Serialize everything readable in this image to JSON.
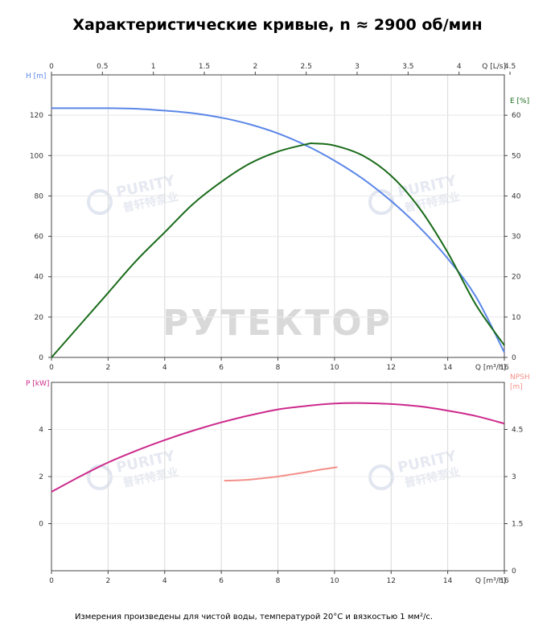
{
  "title": "Характеристические кривые, n ≈ 2900 об/мин",
  "footnote": "Измерения произведены для чистой воды, температурой 20°С и вязкостью 1 мм²/с.",
  "watermarks": {
    "brand": "PURITY",
    "brand_cn": "普轩特泵业",
    "main": "РУТЕКТОР"
  },
  "colors": {
    "head": "#5b87e8",
    "efficiency": "#1a6b1a",
    "power": "#cc2a8c",
    "npsh": "#f4908a",
    "axis_text": "#333333",
    "grid": "#d8d8d8"
  },
  "chart_data": [
    {
      "type": "line",
      "name": "top",
      "x_top": {
        "label": "Q [L/s]",
        "ticks": [
          "0",
          "0.5",
          "1",
          "1.5",
          "2",
          "2.5",
          "3",
          "3.5",
          "4",
          "4.5"
        ],
        "range": [
          0,
          4.5
        ]
      },
      "x": {
        "label": "Q [m³/h]",
        "ticks": [
          "0",
          "2",
          "4",
          "6",
          "8",
          "10",
          "12",
          "14",
          "16"
        ],
        "range": [
          0,
          16
        ]
      },
      "y_left": {
        "label": "H [m]",
        "ticks": [
          "0",
          "20",
          "40",
          "60",
          "80",
          "100",
          "120"
        ],
        "range": [
          0,
          140
        ]
      },
      "y_right": {
        "label": "E [%]",
        "ticks": [
          "0",
          "10",
          "20",
          "30",
          "40",
          "50",
          "60"
        ],
        "range": [
          0,
          70
        ]
      },
      "series": [
        {
          "axis": "left",
          "color_key": "head",
          "x": [
            0,
            1,
            2,
            3,
            4,
            5,
            6,
            7,
            8,
            9,
            10,
            11,
            12,
            13,
            14,
            15,
            16
          ],
          "y": [
            123.5,
            123.5,
            123.5,
            123.2,
            122.3,
            121,
            118.8,
            115.5,
            111,
            105,
            97.5,
            88.5,
            77.5,
            64.5,
            49,
            30,
            2.5
          ]
        },
        {
          "axis": "right",
          "color_key": "efficiency",
          "x": [
            0,
            1,
            2,
            3,
            4,
            5,
            6,
            7,
            8,
            9,
            9.3,
            10,
            11,
            12,
            13,
            14,
            15,
            16
          ],
          "y": [
            0,
            8,
            16,
            24,
            31,
            38,
            43.5,
            48,
            51,
            52.8,
            53,
            52.5,
            50,
            45,
            37,
            26,
            13,
            3
          ]
        }
      ]
    },
    {
      "type": "line",
      "name": "bottom",
      "x": {
        "label": "Q [m³/h]",
        "ticks": [
          "0",
          "2",
          "4",
          "6",
          "8",
          "10",
          "12",
          "14",
          "16"
        ],
        "range": [
          0,
          16
        ]
      },
      "y_left": {
        "label": "P [kW]",
        "ticks": [
          "0",
          "2",
          "4"
        ],
        "range": [
          -2,
          6
        ]
      },
      "y_right": {
        "label": "NPSH [m]",
        "ticks": [
          "0",
          "1.5",
          "3",
          "4.5"
        ],
        "range": [
          0,
          6
        ]
      },
      "series": [
        {
          "axis": "left",
          "color_key": "power",
          "x": [
            0,
            1,
            2,
            3,
            4,
            5,
            6,
            7,
            8,
            9,
            10,
            11,
            12,
            13,
            14,
            15,
            16
          ],
          "y": [
            1.35,
            2,
            2.6,
            3.1,
            3.55,
            3.95,
            4.3,
            4.6,
            4.85,
            5.0,
            5.1,
            5.12,
            5.08,
            4.98,
            4.8,
            4.57,
            4.25
          ]
        },
        {
          "axis": "right",
          "color_key": "npsh",
          "x": [
            6.1,
            6.5,
            7,
            7.5,
            8,
            8.5,
            9,
            9.5,
            10.1
          ],
          "y": [
            2.87,
            2.88,
            2.9,
            2.95,
            3.0,
            3.07,
            3.14,
            3.22,
            3.3
          ]
        }
      ]
    }
  ]
}
